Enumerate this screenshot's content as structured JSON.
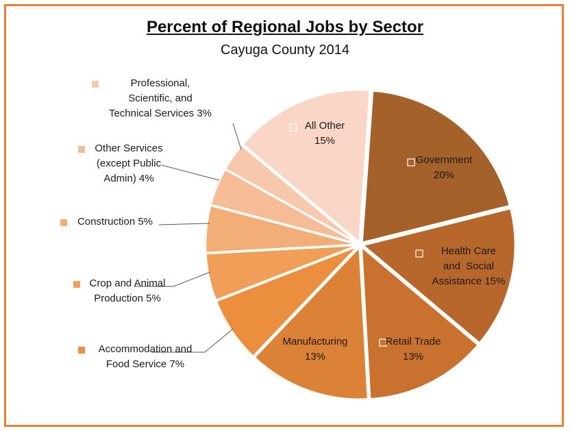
{
  "chart_data": {
    "type": "pie",
    "title": "Percent of Regional Jobs by Sector",
    "subtitle": "Cayuga County 2014",
    "slices": [
      {
        "label_lines": [
          "Government",
          "20%"
        ],
        "value": 20,
        "color": "#a5612a",
        "marker": true,
        "label_inside": true
      },
      {
        "label_lines": [
          "Health Care",
          "and  Social",
          "Assistance 15%"
        ],
        "value": 15,
        "color": "#b7672c",
        "marker": true,
        "label_inside": true
      },
      {
        "label_lines": [
          "Retail Trade",
          "13%"
        ],
        "value": 13,
        "color": "#c9722f",
        "marker": true,
        "label_inside": true
      },
      {
        "label_lines": [
          "Manufacturing",
          "13%"
        ],
        "value": 13,
        "color": "#dc8236",
        "marker": false,
        "label_inside": true
      },
      {
        "label_lines": [
          "Accommodation and",
          "Food Service 7%"
        ],
        "value": 7,
        "color": "#eb8f3f",
        "marker": true,
        "label_inside": false
      },
      {
        "label_lines": [
          "Crop and Animal",
          "Production 5%"
        ],
        "value": 5,
        "color": "#f09e58",
        "marker": true,
        "label_inside": false
      },
      {
        "label_lines": [
          "Construction 5%"
        ],
        "value": 5,
        "color": "#f3ad77",
        "marker": true,
        "label_inside": false
      },
      {
        "label_lines": [
          "Other Services",
          "(except Public",
          "Admin) 4%"
        ],
        "value": 4,
        "color": "#f5bc95",
        "marker": true,
        "label_inside": false
      },
      {
        "label_lines": [
          "Professional,",
          "Scientific, and",
          "Technical Services 3%"
        ],
        "value": 3,
        "color": "#f7c8ab",
        "marker": true,
        "label_inside": false
      },
      {
        "label_lines": [
          "All Other",
          "15%"
        ],
        "value": 15,
        "color": "#fad6c6",
        "marker": true,
        "label_inside": true
      }
    ],
    "legend": "none"
  }
}
